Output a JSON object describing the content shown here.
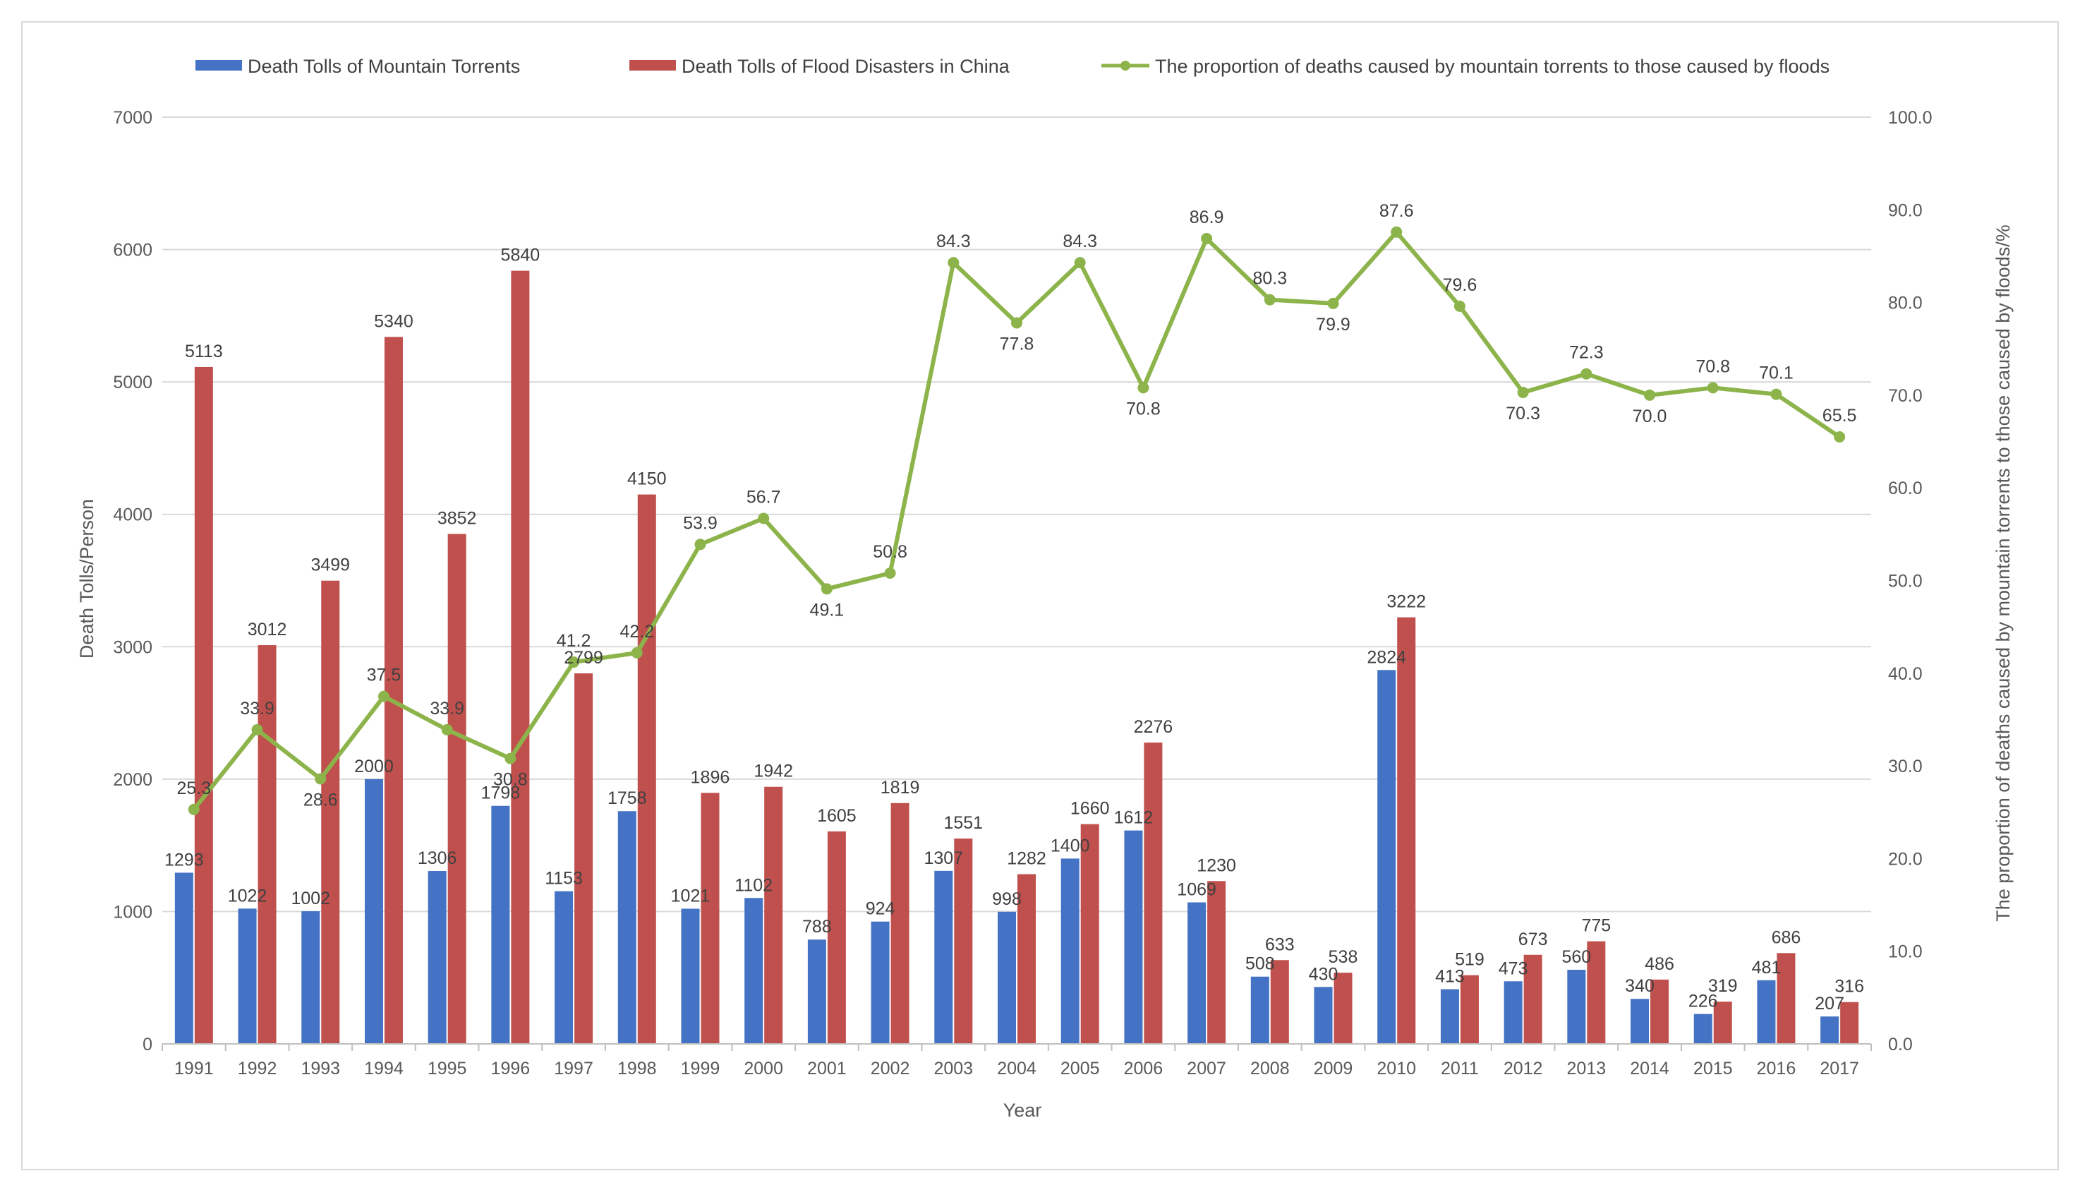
{
  "chart_data": {
    "type": "bar",
    "categories": [
      "1991",
      "1992",
      "1993",
      "1994",
      "1995",
      "1996",
      "1997",
      "1998",
      "1999",
      "2000",
      "2001",
      "2002",
      "2003",
      "2004",
      "2005",
      "2006",
      "2007",
      "2008",
      "2009",
      "2010",
      "2011",
      "2012",
      "2013",
      "2014",
      "2015",
      "2016",
      "2017"
    ],
    "series": [
      {
        "name": "Death Tolls of Mountain Torrents",
        "type": "bar",
        "color": "#4472C4",
        "axis": "left",
        "values": [
          1293,
          1022,
          1002,
          2000,
          1306,
          1798,
          1153,
          1758,
          1021,
          1102,
          788,
          924,
          1307,
          998,
          1400,
          1612,
          1069,
          508,
          430,
          2824,
          413,
          473,
          560,
          340,
          226,
          481,
          207
        ],
        "labels": [
          "1293",
          "1022",
          "1002",
          "2000",
          "1306",
          "1798",
          "1153",
          "1758",
          "1021",
          "1102",
          "788",
          "924",
          "1307",
          "998",
          "1400",
          "1612",
          "1069",
          "508",
          "430",
          "2824",
          "413",
          "473",
          "560",
          "340",
          "226",
          "481",
          "207"
        ]
      },
      {
        "name": "Death Tolls of Flood Disasters in China",
        "type": "bar",
        "color": "#C0504D",
        "axis": "left",
        "values": [
          5113,
          3012,
          3499,
          5340,
          3852,
          5840,
          2799,
          4150,
          1896,
          1942,
          1605,
          1819,
          1551,
          1282,
          1660,
          2276,
          1230,
          633,
          538,
          3222,
          519,
          673,
          775,
          486,
          319,
          686,
          316
        ],
        "labels": [
          "5113",
          "3012",
          "3499",
          "5340",
          "3852",
          "5840",
          "2799",
          "4150",
          "1896",
          "1942",
          "1605",
          "1819",
          "1551",
          "1282",
          "1660",
          "2276",
          "1230",
          "633",
          "538",
          "3222",
          "519",
          "673",
          "775",
          "486",
          "319",
          "686",
          "316"
        ]
      },
      {
        "name": "The proportion of deaths caused by mountain torrents to those caused by floods",
        "type": "line",
        "color": "#8DB44B",
        "axis": "right",
        "values": [
          25.3,
          33.9,
          28.6,
          37.5,
          33.9,
          30.8,
          41.2,
          42.2,
          53.9,
          56.7,
          49.1,
          50.8,
          84.3,
          77.8,
          84.3,
          70.8,
          86.9,
          80.3,
          79.9,
          87.6,
          79.6,
          70.3,
          72.3,
          70.0,
          70.8,
          70.1,
          65.5
        ],
        "labels": [
          "25.3",
          "33.9",
          "28.6",
          "37.5",
          "33.9",
          "30.8",
          "41.2",
          "42.2",
          "53.9",
          "56.7",
          "49.1",
          "50.8",
          "84.3",
          "77.8",
          "84.3",
          "70.8",
          "86.9",
          "80.3",
          "79.9",
          "87.6",
          "79.6",
          "70.3",
          "72.3",
          "70.0",
          "70.8",
          "70.1",
          "65.5"
        ]
      }
    ],
    "xlabel": "Year",
    "ylabel": "Death Tolls/Person",
    "y2label": "The proportion of deaths caused by mountain torrents to those caused by floods/%",
    "ylim": [
      0,
      7000
    ],
    "y2lim": [
      0,
      100
    ],
    "yticks": [
      "0",
      "1000",
      "2000",
      "3000",
      "4000",
      "5000",
      "6000",
      "7000"
    ],
    "y2ticks": [
      "0.0",
      "10.0",
      "20.0",
      "30.0",
      "40.0",
      "50.0",
      "60.0",
      "70.0",
      "80.0",
      "90.0",
      "100.0"
    ],
    "grid": true,
    "legend": "top"
  }
}
